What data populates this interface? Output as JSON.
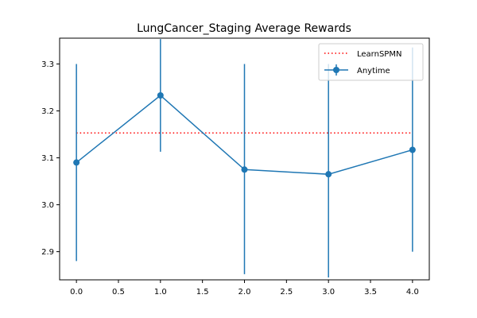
{
  "chart_data": {
    "type": "line",
    "title": "LungCancer_Staging Average Rewards",
    "xlabel": "",
    "ylabel": "",
    "xlim": [
      -0.2,
      4.2
    ],
    "ylim": [
      2.84,
      3.355
    ],
    "xticks": [
      0.0,
      0.5,
      1.0,
      1.5,
      2.0,
      2.5,
      3.0,
      3.5,
      4.0
    ],
    "xtick_labels": [
      "0.0",
      "0.5",
      "1.0",
      "1.5",
      "2.0",
      "2.5",
      "3.0",
      "3.5",
      "4.0"
    ],
    "yticks": [
      2.9,
      3.0,
      3.1,
      3.2,
      3.3
    ],
    "ytick_labels": [
      "2.9",
      "3.0",
      "3.1",
      "3.2",
      "3.3"
    ],
    "grid": false,
    "legend_position": "top-right",
    "series": [
      {
        "name": "LearnSPMN",
        "style": "dotted",
        "color": "#ff0000",
        "x": [
          0,
          4
        ],
        "y": [
          3.153,
          3.153
        ]
      },
      {
        "name": "Anytime",
        "style": "line-marker-errorbar",
        "color": "#1f77b4",
        "x": [
          0,
          1,
          2,
          3,
          4
        ],
        "y": [
          3.09,
          3.233,
          3.075,
          3.065,
          3.117
        ],
        "yerr_low": [
          2.88,
          3.113,
          2.852,
          2.845,
          2.9
        ],
        "yerr_high": [
          3.3,
          3.353,
          3.3,
          3.3,
          3.335
        ]
      }
    ]
  }
}
